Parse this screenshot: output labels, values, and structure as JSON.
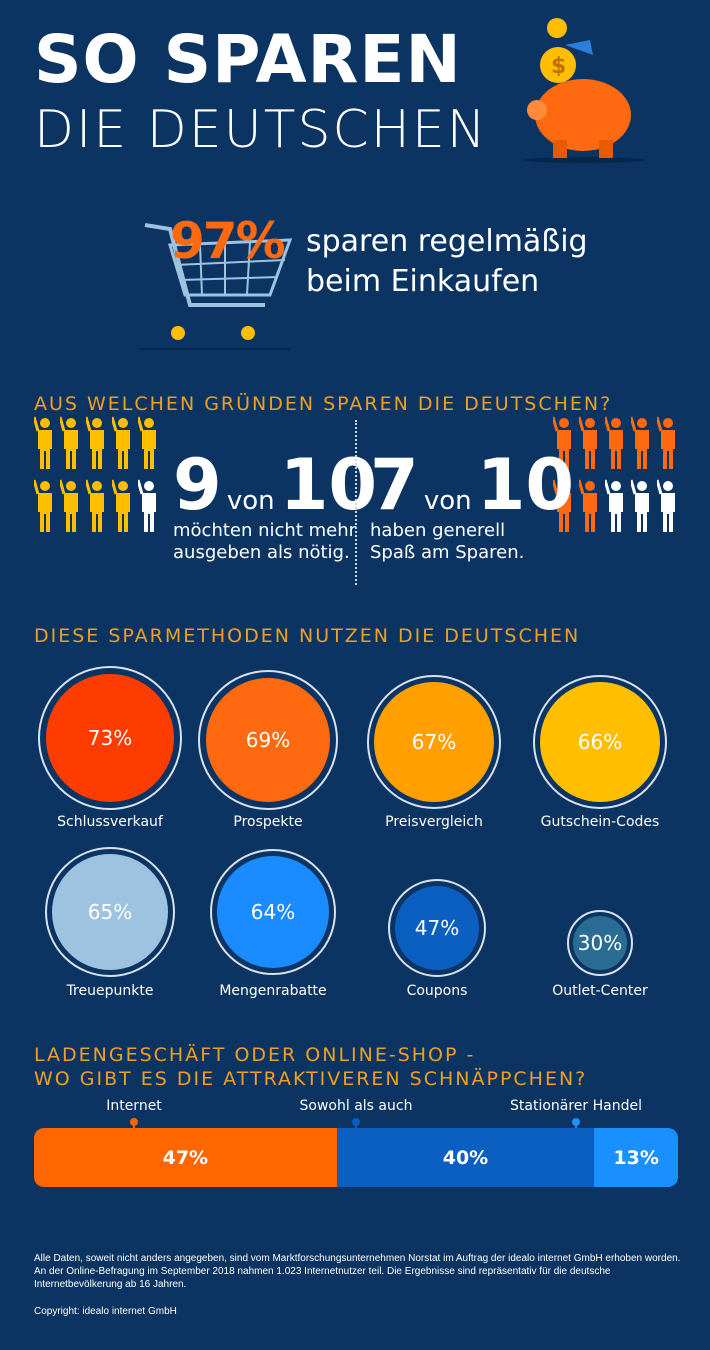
{
  "title": {
    "line1": "SO SPAREN",
    "line2": "DIE DEUTSCHEN"
  },
  "hero": {
    "percent": "97%",
    "text_line1": "sparen regelmäßig",
    "text_line2": "beim Einkaufen"
  },
  "reasons": {
    "heading": "AUS WELCHEN GRÜNDEN SPAREN DIE DEUTSCHEN?",
    "left": {
      "count": "9",
      "von": "von",
      "total": "10",
      "line1": "möchten nicht mehr",
      "line2": "ausgeben als nötig.",
      "filled": 9,
      "color": "#ffbf00"
    },
    "right": {
      "count": "7",
      "von": "von",
      "total": "10",
      "line1": "haben generell",
      "line2": "Spaß am Sparen.",
      "filled": 7,
      "color": "#ff6a10"
    }
  },
  "methods": {
    "heading": "DIESE SPARMETHODEN NUTZEN DIE DEUTSCHEN"
  },
  "shops": {
    "heading_line1": "LADENGESCHÄFT ODER ONLINE-SHOP -",
    "heading_line2": "WO GIBT ES DIE ATTRAKTIVEREN SCHNÄPPCHEN?"
  },
  "chart_data": [
    {
      "type": "bubble",
      "categories": [
        "Schlussverkauf",
        "Prospekte",
        "Preisvergleich",
        "Gutschein-Codes",
        "Treuepunkte",
        "Mengenrabatte",
        "Coupons",
        "Outlet-Center"
      ],
      "values": [
        73,
        69,
        67,
        66,
        65,
        64,
        47,
        30
      ],
      "labels": [
        "73%",
        "69%",
        "67%",
        "66%",
        "65%",
        "64%",
        "47%",
        "30%"
      ],
      "colors": [
        "#ff3c00",
        "#ff6a10",
        "#ffa000",
        "#ffbf00",
        "#9ec3e0",
        "#1a8cff",
        "#0a5fc0",
        "#2b6c95"
      ]
    },
    {
      "type": "bar",
      "stacked": true,
      "categories": [
        "Internet",
        "Sowohl als auch",
        "Stationärer Handel"
      ],
      "values": [
        47,
        40,
        13
      ],
      "labels": [
        "47%",
        "40%",
        "13%"
      ],
      "colors": [
        "#ff6600",
        "#0a5fc0",
        "#1a90ff"
      ]
    }
  ],
  "footer": {
    "note": "Alle Daten, soweit nicht anders angegeben, sind vom Marktforschungsunternehmen Norstat im Auftrag der idealo internet GmbH erhoben worden. An der Online-Befragung im September 2018 nahmen 1.023 Internetnutzer teil. Die Ergebnisse sind repräsentativ für die deutsche Internetbevölkerung ab 16 Jahren.",
    "copyright": "Copyright: idealo internet GmbH"
  }
}
